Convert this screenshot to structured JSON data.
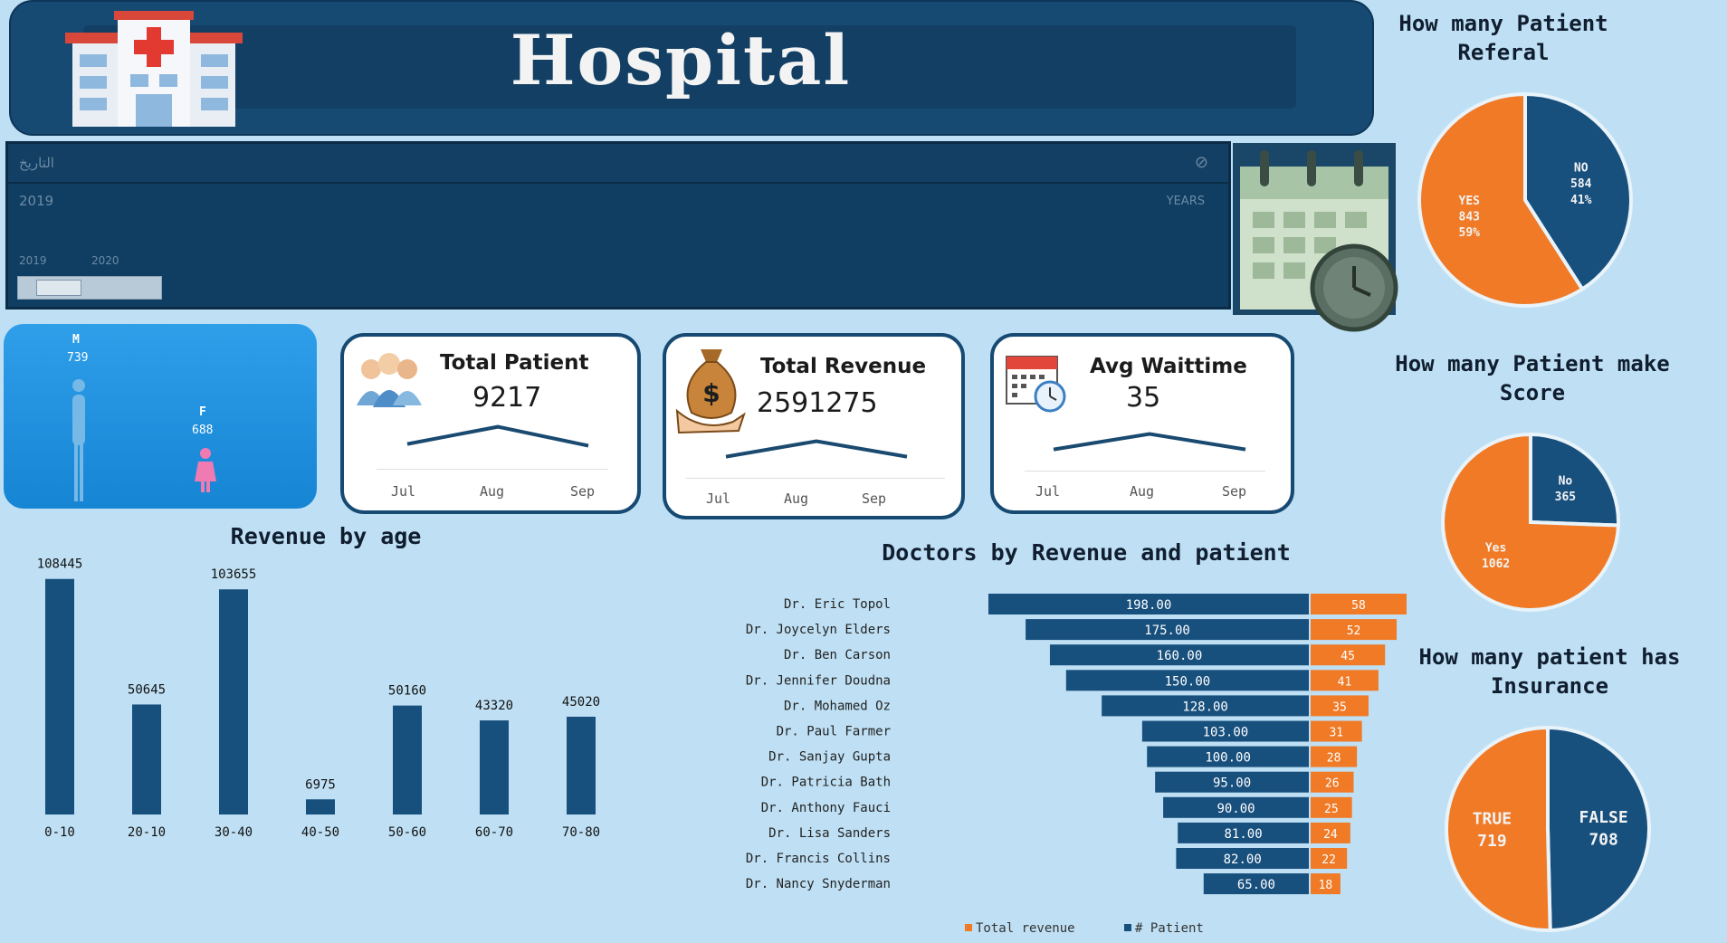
{
  "header": {
    "title": "Hospital"
  },
  "slicer": {
    "label": "التاريخ",
    "selected": "2019",
    "level": "YEARS",
    "tick_start": "2019",
    "tick_end": "2020"
  },
  "gender": {
    "male_label": "M",
    "male_value": "739",
    "female_label": "F",
    "female_value": "688"
  },
  "kpis": [
    {
      "title": "Total Patient",
      "value": "9217",
      "months": [
        "Jul",
        "Aug",
        "Sep"
      ],
      "trend": [
        0.3,
        0.8,
        0.25
      ]
    },
    {
      "title": "Total Revenue",
      "value": "2591275",
      "months": [
        "Jul",
        "Aug",
        "Sep"
      ],
      "trend": [
        0.3,
        0.75,
        0.3
      ]
    },
    {
      "title": "Avg Waittime",
      "value": "35",
      "months": [
        "Jul",
        "Aug",
        "Sep"
      ],
      "trend": [
        0.3,
        0.75,
        0.3
      ]
    }
  ],
  "sections": {
    "revenue_age": "Revenue by age",
    "doctors": "Doctors by Revenue and patient",
    "referral": "How many Patient Referal",
    "score": "How many Patient make Score",
    "insurance": "How many patient has Insurance"
  },
  "chart_data": [
    {
      "type": "bar",
      "title": "Revenue by age",
      "categories": [
        "0-10",
        "20-10",
        "30-40",
        "40-50",
        "50-60",
        "60-70",
        "70-80"
      ],
      "values": [
        108445,
        50645,
        103655,
        6975,
        50160,
        43320,
        45020
      ],
      "value_labels": [
        "108445",
        "50645",
        "103655",
        "6975",
        "50160",
        "43320",
        "45020"
      ],
      "ylim": [
        0,
        115000
      ],
      "grid": false,
      "colors": {
        "bar": "#174f7d"
      }
    },
    {
      "type": "bar",
      "orientation": "horizontal",
      "title": "Doctors by Revenue and patient",
      "categories": [
        "Dr. Eric Topol",
        "Dr. Joycelyn Elders",
        "Dr. Ben Carson",
        "Dr. Jennifer Doudna",
        "Dr. Mohamed Oz",
        "Dr. Paul Farmer",
        "Dr. Sanjay Gupta",
        "Dr. Patricia Bath",
        "Dr. Anthony Fauci",
        "Dr. Lisa Sanders",
        "Dr. Francis Collins",
        "Dr. Nancy Snyderman"
      ],
      "series": [
        {
          "name": "Total revenue",
          "values": [
            198,
            175,
            160,
            150,
            128,
            103,
            100,
            95,
            90,
            81,
            82,
            65
          ],
          "labels": [
            "198.00",
            "175.00",
            "160.00",
            "150.00",
            "128.00",
            "103.00",
            "100.00",
            "95.00",
            "90.00",
            "81.00",
            "82.00",
            "65.00"
          ],
          "color": "#174f7d"
        },
        {
          "name": "# Patient",
          "values": [
            58,
            52,
            45,
            41,
            35,
            31,
            28,
            26,
            25,
            24,
            22,
            18
          ],
          "labels": [
            "58",
            "52",
            "45",
            "41",
            "35",
            "31",
            "28",
            "26",
            "25",
            "24",
            "22",
            "18"
          ],
          "color": "#f07a26"
        }
      ],
      "legend": "bottom"
    },
    {
      "type": "pie",
      "title": "How many Patient Referal",
      "slices": [
        {
          "label": "NO",
          "value": 584,
          "percent": "41%",
          "color": "#174f7d"
        },
        {
          "label": "YES",
          "value": 843,
          "percent": "59%",
          "color": "#f07a26"
        }
      ]
    },
    {
      "type": "pie",
      "title": "How many Patient make Score",
      "slices": [
        {
          "label": "No",
          "value": 365,
          "color": "#174f7d"
        },
        {
          "label": "Yes",
          "value": 1062,
          "color": "#f07a26"
        }
      ]
    },
    {
      "type": "pie",
      "title": "How many patient has Insurance",
      "slices": [
        {
          "label": "FALSE",
          "value": 708,
          "color": "#174f7d"
        },
        {
          "label": "TRUE",
          "value": 719,
          "color": "#f07a26"
        }
      ]
    }
  ]
}
